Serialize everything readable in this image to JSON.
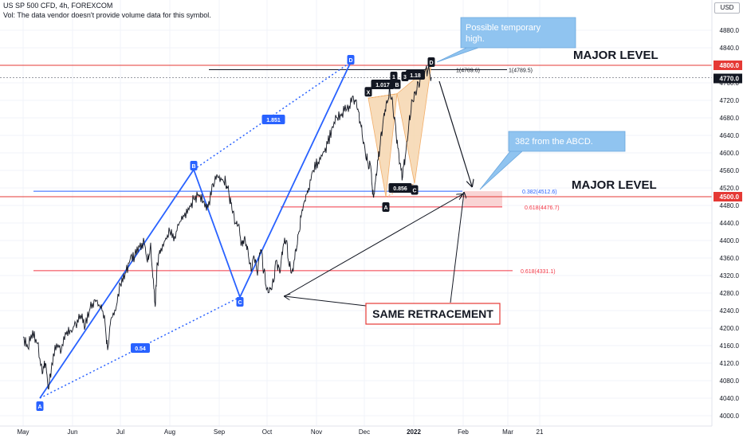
{
  "header": {
    "title": "US SP 500 CFD, 4h, FOREXCOM",
    "volume_note": "Vol: The data vendor doesn't provide volume data for this symbol.",
    "currency": "USD"
  },
  "chart_data": {
    "type": "line",
    "title": "US SP 500 CFD, 4h, FOREXCOM",
    "xlabel": "",
    "ylabel": "",
    "ylim": [
      3990,
      4910
    ],
    "y_ticks": [
      4000,
      4040,
      4080,
      4120,
      4160,
      4200,
      4240,
      4280,
      4320,
      4360,
      4400,
      4440,
      4480,
      4520,
      4560,
      4600,
      4640,
      4680,
      4720,
      4760,
      4800,
      4840,
      4880
    ],
    "x_ticks": [
      {
        "label": "May",
        "t": 0
      },
      {
        "label": "Jun",
        "t": 31
      },
      {
        "label": "Jul",
        "t": 61
      },
      {
        "label": "Aug",
        "t": 92
      },
      {
        "label": "Sep",
        "t": 123
      },
      {
        "label": "Oct",
        "t": 153
      },
      {
        "label": "Nov",
        "t": 184
      },
      {
        "label": "Dec",
        "t": 214
      },
      {
        "label": "2022",
        "t": 245
      },
      {
        "label": "Feb",
        "t": 276
      },
      {
        "label": "Mar",
        "t": 304
      },
      {
        "label": "21",
        "t": 324
      }
    ],
    "series": [
      {
        "values": [
          [
            0,
            4180
          ],
          [
            3,
            4155
          ],
          [
            6,
            4195
          ],
          [
            9,
            4165
          ],
          [
            12,
            4095
          ],
          [
            14,
            4120
          ],
          [
            16,
            4060
          ],
          [
            18,
            4120
          ],
          [
            21,
            4165
          ],
          [
            24,
            4150
          ],
          [
            27,
            4185
          ],
          [
            30,
            4195
          ],
          [
            33,
            4210
          ],
          [
            36,
            4230
          ],
          [
            39,
            4205
          ],
          [
            42,
            4245
          ],
          [
            45,
            4265
          ],
          [
            48,
            4250
          ],
          [
            51,
            4230
          ],
          [
            53,
            4150
          ],
          [
            55,
            4220
          ],
          [
            58,
            4240
          ],
          [
            61,
            4300
          ],
          [
            64,
            4325
          ],
          [
            67,
            4355
          ],
          [
            70,
            4365
          ],
          [
            73,
            4385
          ],
          [
            76,
            4395
          ],
          [
            78,
            4350
          ],
          [
            80,
            4395
          ],
          [
            82,
            4290
          ],
          [
            83,
            4255
          ],
          [
            84,
            4350
          ],
          [
            86,
            4370
          ],
          [
            89,
            4400
          ],
          [
            92,
            4420
          ],
          [
            95,
            4410
          ],
          [
            98,
            4440
          ],
          [
            101,
            4455
          ],
          [
            104,
            4470
          ],
          [
            107,
            4495
          ],
          [
            110,
            4505
          ],
          [
            113,
            4490
          ],
          [
            116,
            4475
          ],
          [
            119,
            4530
          ],
          [
            122,
            4545
          ],
          [
            125,
            4540
          ],
          [
            127,
            4535
          ],
          [
            129,
            4510
          ],
          [
            131,
            4470
          ],
          [
            133,
            4440
          ],
          [
            135,
            4435
          ],
          [
            137,
            4395
          ],
          [
            139,
            4410
          ],
          [
            141,
            4380
          ],
          [
            143,
            4330
          ],
          [
            145,
            4360
          ],
          [
            147,
            4320
          ],
          [
            149,
            4380
          ],
          [
            151,
            4330
          ],
          [
            153,
            4290
          ],
          [
            155,
            4290
          ],
          [
            157,
            4305
          ],
          [
            159,
            4355
          ],
          [
            161,
            4325
          ],
          [
            163,
            4385
          ],
          [
            165,
            4400
          ],
          [
            167,
            4340
          ],
          [
            169,
            4335
          ],
          [
            171,
            4380
          ],
          [
            173,
            4420
          ],
          [
            175,
            4470
          ],
          [
            177,
            4490
          ],
          [
            179,
            4520
          ],
          [
            182,
            4560
          ],
          [
            185,
            4580
          ],
          [
            188,
            4600
          ],
          [
            191,
            4620
          ],
          [
            194,
            4660
          ],
          [
            197,
            4680
          ],
          [
            200,
            4690
          ],
          [
            203,
            4700
          ],
          [
            206,
            4715
          ],
          [
            208,
            4720
          ],
          [
            210,
            4700
          ],
          [
            212,
            4660
          ],
          [
            214,
            4620
          ],
          [
            216,
            4580
          ],
          [
            218,
            4570
          ],
          [
            219,
            4520
          ],
          [
            220,
            4505
          ],
          [
            222,
            4560
          ],
          [
            224,
            4620
          ],
          [
            226,
            4680
          ],
          [
            228,
            4720
          ],
          [
            230,
            4745
          ],
          [
            232,
            4700
          ],
          [
            234,
            4640
          ],
          [
            236,
            4575
          ],
          [
            238,
            4545
          ],
          [
            240,
            4600
          ],
          [
            242,
            4670
          ],
          [
            244,
            4720
          ],
          [
            246,
            4740
          ],
          [
            248,
            4760
          ],
          [
            250,
            4775
          ],
          [
            252,
            4785
          ],
          [
            254,
            4790
          ],
          [
            256,
            4772
          ]
        ]
      }
    ],
    "last_price": "4770.0",
    "price_marks": [
      {
        "label": "4800.0",
        "value": 4800
      },
      {
        "label": "4500.0",
        "value": 4500
      }
    ],
    "annotations": {
      "bubble_top": "Possible temporary high.",
      "bubble_mid": "382 from the ABCD.",
      "major_level_top": "MAJOR LEVEL",
      "major_level_bottom": "MAJOR LEVEL",
      "same_retracement": "SAME RETRACEMENT",
      "fib_382": "0.382(4512.6)",
      "fib_618_a": "0.618(4476.7)",
      "fib_618_b": "0.618(4331.1)",
      "fib_top_a": "1(4789.6)",
      "fib_top_b": "1(4789.5)",
      "ratio_1851": "1.851",
      "ratio_054": "0.54",
      "ratio_1017": "1.017",
      "ratio_0856": "0.856",
      "ratio_118": "1.18",
      "ratio_1b": "1",
      "ratio_3": "3"
    },
    "point_labels": {
      "A": "A",
      "B": "B",
      "C": "C",
      "D": "D",
      "X": "X"
    },
    "colors": {
      "price_line": "#131722",
      "pattern_blue": "#2962ff",
      "major_red": "#e53935",
      "fib_red": "#f23645",
      "harmonic_fill": "#f6d7b0",
      "harmonic_edge": "#f0a050",
      "bubble": "#90c4f0",
      "zone": "#f7c9c9",
      "same_box_border": "#e53935"
    }
  }
}
